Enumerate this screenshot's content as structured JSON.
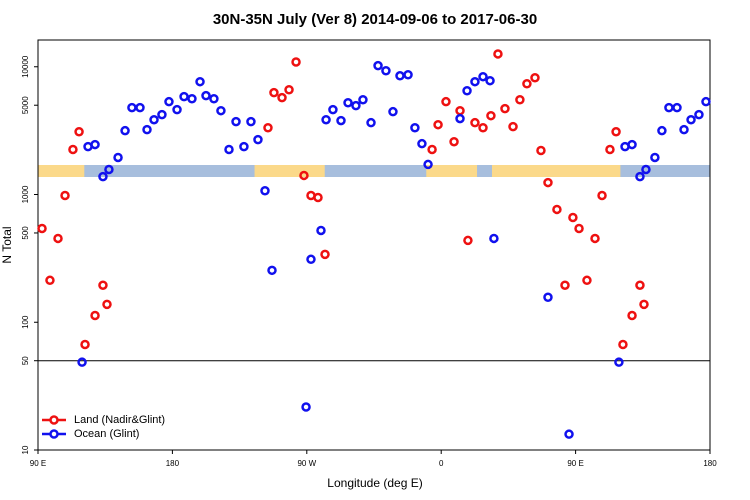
{
  "chart_data": {
    "type": "scatter",
    "title": "30N-35N July (Ver 8)   2014-09-06 to 2017-06-30",
    "xlabel": "Longitude (deg E)",
    "ylabel": "N Total",
    "xlim": [
      90,
      540
    ],
    "xticks": [
      {
        "value": 90,
        "label": "90 E"
      },
      180,
      {
        "value": 270,
        "label": "90 W"
      },
      {
        "value": 360,
        "label": "0"
      },
      {
        "value": 450,
        "label": "90 E"
      },
      {
        "value": 540,
        "label": "180"
      }
    ],
    "ylim": [
      10,
      16200
    ],
    "log_y": true,
    "yticks": [
      10,
      50,
      100,
      500,
      1000,
      5000,
      10000
    ],
    "reference_line": 50,
    "legend": "lower left",
    "band_color": "#a7bedd",
    "land_band_color": "#fbd98a",
    "land_ranges": [
      [
        90,
        121
      ],
      [
        235,
        282
      ],
      [
        350,
        384
      ],
      [
        394,
        480
      ]
    ],
    "series": [
      {
        "name": "Land (Nadir&Glint)",
        "color": "#ee1111",
        "x": [
          92.7,
          98.0,
          103.4,
          108.1,
          113.4,
          117.5,
          121.5,
          128.2,
          133.5,
          136.2,
          244.0,
          248.0,
          253.4,
          258.1,
          262.8,
          268.1,
          272.8,
          277.5,
          282.2,
          353.9,
          357.9,
          363.2,
          368.6,
          372.6,
          377.9,
          382.6,
          388.0,
          393.3,
          398.0,
          402.7,
          408.1,
          412.7,
          417.4,
          422.8,
          426.8,
          431.5,
          437.5,
          442.9,
          448.2,
          452.3,
          457.6,
          463.0,
          467.7,
          473.0,
          477.1,
          481.7,
          487.8,
          493.1,
          495.8
        ],
        "values": [
          542,
          213,
          453,
          982,
          2250,
          3100,
          67,
          113,
          195,
          138,
          3330,
          6270,
          5730,
          6610,
          10900,
          1410,
          982,
          948,
          340,
          2250,
          3520,
          5330,
          2590,
          4530,
          437,
          3650,
          3330,
          4140,
          12600,
          4700,
          3400,
          5520,
          7360,
          8200,
          2210,
          1240,
          764,
          195,
          661,
          542,
          213,
          453,
          982,
          2250,
          3100,
          67,
          113,
          195,
          138
        ]
      },
      {
        "name": "Ocean (Glint)",
        "color": "#1111ee",
        "x": [
          119.5,
          123.5,
          128.2,
          133.5,
          137.5,
          143.6,
          148.3,
          152.9,
          158.3,
          163.0,
          167.7,
          173.0,
          177.7,
          183.1,
          187.8,
          193.1,
          198.5,
          202.5,
          207.8,
          212.5,
          217.9,
          222.6,
          227.9,
          232.6,
          237.3,
          242.0,
          246.7,
          269.5,
          272.8,
          279.5,
          282.9,
          287.5,
          292.9,
          297.6,
          302.9,
          307.6,
          313.0,
          317.7,
          323.0,
          327.7,
          332.4,
          337.8,
          342.4,
          347.1,
          351.2,
          372.6,
          377.3,
          382.6,
          388.0,
          392.7,
          395.3,
          431.5,
          445.6,
          479.0,
          483.1,
          487.8,
          493.1,
          497.1,
          503.1,
          507.8,
          512.5,
          517.9,
          522.6,
          527.3,
          532.6,
          537.3
        ],
        "values": [
          48.7,
          2370,
          2460,
          1380,
          1570,
          1950,
          3160,
          4790,
          4790,
          3220,
          3850,
          4220,
          5330,
          4620,
          5840,
          5620,
          7640,
          5940,
          5620,
          4530,
          2250,
          3720,
          2370,
          3720,
          2690,
          1070,
          255,
          21.7,
          311,
          523,
          3850,
          4620,
          3790,
          5230,
          4960,
          5520,
          3650,
          10200,
          9310,
          4450,
          8500,
          8660,
          3330,
          2500,
          1720,
          3930,
          6490,
          7640,
          8360,
          7780,
          453,
          157,
          13.3,
          48.7,
          2370,
          2460,
          1380,
          1570,
          1950,
          3160,
          4790,
          4790,
          3220,
          3850,
          4220,
          5330
        ]
      }
    ]
  }
}
